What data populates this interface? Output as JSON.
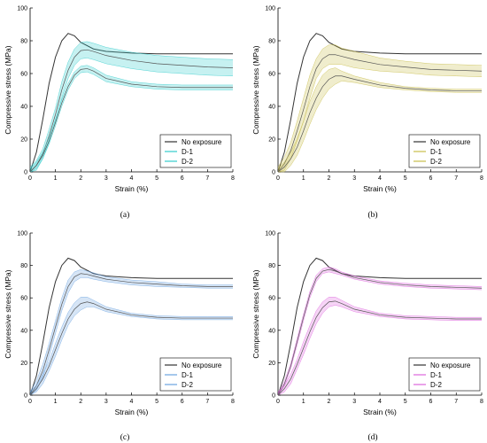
{
  "colors": {
    "no_exposure": "#333333",
    "a": "#33cccc",
    "b": "#c8bd4a",
    "c": "#6aa3e0",
    "d": "#dd66dd"
  },
  "chart_data": [
    {
      "type": "line",
      "panel_label": "(a)",
      "xlabel": "Strain (%)",
      "ylabel": "Compressive stress (MPa)",
      "xlim": [
        0,
        8
      ],
      "ylim": [
        0,
        100
      ],
      "xticks": [
        0,
        1,
        2,
        3,
        4,
        5,
        6,
        7,
        8
      ],
      "yticks": [
        0,
        20,
        40,
        60,
        80,
        100
      ],
      "legend_position": "lower-right",
      "series": [
        {
          "name": "No exposure",
          "color_key": "no_exposure",
          "x": [
            0,
            0.25,
            0.5,
            0.75,
            1.0,
            1.25,
            1.5,
            1.75,
            2.0,
            2.5,
            3.0,
            4.0,
            5.0,
            6.0,
            7.0,
            8.0
          ],
          "y": [
            0,
            12,
            32,
            54,
            70,
            80,
            84.5,
            83,
            79,
            75,
            73.5,
            72.5,
            72,
            72,
            72,
            72
          ],
          "band": null
        },
        {
          "name": "D-1",
          "color_key": "a",
          "x": [
            0,
            0.25,
            0.5,
            0.75,
            1.0,
            1.25,
            1.5,
            1.75,
            2.0,
            2.25,
            2.5,
            3.0,
            4.0,
            5.0,
            6.0,
            7.0,
            8.0
          ],
          "y": [
            0,
            4,
            11,
            22,
            35,
            50,
            62,
            70,
            74,
            74.5,
            73.5,
            71,
            68,
            66,
            65,
            64,
            63.5
          ],
          "band": [
            3,
            3,
            3,
            4,
            4,
            5,
            5,
            5,
            5,
            5,
            5,
            5,
            5,
            5,
            5,
            5,
            5
          ]
        },
        {
          "name": "D-2",
          "color_key": "a",
          "x": [
            0,
            0.25,
            0.5,
            0.75,
            1.0,
            1.25,
            1.5,
            1.75,
            2.0,
            2.25,
            2.5,
            3.0,
            4.0,
            5.0,
            6.0,
            7.0,
            8.0
          ],
          "y": [
            0,
            4,
            10,
            19,
            30,
            42,
            52,
            59,
            62.5,
            63,
            61.5,
            57,
            53.5,
            52,
            51.5,
            51.5,
            51.5
          ],
          "band": [
            2,
            2,
            2,
            2,
            2,
            2,
            2,
            2,
            2,
            2,
            2,
            2,
            1.5,
            1.5,
            1.5,
            1.5,
            1.5
          ]
        }
      ]
    },
    {
      "type": "line",
      "panel_label": "(b)",
      "xlabel": "Strain (%)",
      "ylabel": "Compressive stress (MPa)",
      "xlim": [
        0,
        8
      ],
      "ylim": [
        0,
        100
      ],
      "xticks": [
        0,
        1,
        2,
        3,
        4,
        5,
        6,
        7,
        8
      ],
      "yticks": [
        0,
        20,
        40,
        60,
        80,
        100
      ],
      "legend_position": "lower-right",
      "series": [
        {
          "name": "No exposure",
          "color_key": "no_exposure",
          "x": [
            0,
            0.25,
            0.5,
            0.75,
            1.0,
            1.25,
            1.5,
            1.75,
            2.0,
            2.5,
            3.0,
            4.0,
            5.0,
            6.0,
            7.0,
            8.0
          ],
          "y": [
            0,
            12,
            32,
            54,
            70,
            80,
            84.5,
            83,
            79,
            75,
            73.5,
            72.5,
            72,
            72,
            72,
            72
          ],
          "band": null
        },
        {
          "name": "D-1",
          "color_key": "b",
          "x": [
            0,
            0.25,
            0.5,
            0.75,
            1.0,
            1.25,
            1.5,
            1.75,
            2.0,
            2.25,
            2.5,
            3.0,
            4.0,
            5.0,
            6.0,
            7.0,
            8.0
          ],
          "y": [
            0,
            5,
            13,
            25,
            38,
            52,
            63,
            69,
            71.5,
            71.5,
            70.5,
            68.5,
            65.5,
            64,
            62.5,
            62,
            61.5
          ],
          "band": [
            3,
            4,
            5,
            6,
            7,
            7,
            6,
            6,
            6,
            6,
            5,
            5,
            4,
            3.5,
            3.5,
            3.5,
            3.5
          ]
        },
        {
          "name": "D-2",
          "color_key": "b",
          "x": [
            0,
            0.25,
            0.5,
            0.75,
            1.0,
            1.25,
            1.5,
            1.75,
            2.0,
            2.25,
            2.5,
            3.0,
            4.0,
            5.0,
            6.0,
            7.0,
            8.0
          ],
          "y": [
            0,
            3,
            8,
            15,
            25,
            36,
            45,
            52,
            56.5,
            58.5,
            58.5,
            56.5,
            53,
            51,
            50,
            49.5,
            49.5
          ],
          "band": [
            2,
            3,
            4,
            5,
            6,
            7,
            7,
            7,
            6,
            5,
            3,
            2,
            1.5,
            1,
            1,
            1,
            1
          ]
        }
      ]
    },
    {
      "type": "line",
      "panel_label": "(c)",
      "xlabel": "Strain (%)",
      "ylabel": "Compressive stress (MPa)",
      "xlim": [
        0,
        8
      ],
      "ylim": [
        0,
        100
      ],
      "xticks": [
        0,
        1,
        2,
        3,
        4,
        5,
        6,
        7,
        8
      ],
      "yticks": [
        0,
        20,
        40,
        60,
        80,
        100
      ],
      "legend_position": "lower-right",
      "series": [
        {
          "name": "No exposure",
          "color_key": "no_exposure",
          "x": [
            0,
            0.25,
            0.5,
            0.75,
            1.0,
            1.25,
            1.5,
            1.75,
            2.0,
            2.5,
            3.0,
            4.0,
            5.0,
            6.0,
            7.0,
            8.0
          ],
          "y": [
            0,
            12,
            32,
            54,
            70,
            80,
            84.5,
            83,
            79,
            75,
            73.5,
            72.5,
            72,
            72,
            72,
            72
          ],
          "band": null
        },
        {
          "name": "D-1",
          "color_key": "c",
          "x": [
            0,
            0.25,
            0.5,
            0.75,
            1.0,
            1.25,
            1.5,
            1.75,
            2.0,
            2.25,
            2.5,
            3.0,
            4.0,
            5.0,
            6.0,
            7.0,
            8.0
          ],
          "y": [
            0,
            6,
            15,
            28,
            42,
            56,
            67,
            73,
            75,
            74.5,
            73.5,
            71.5,
            69.5,
            68.5,
            67.5,
            67,
            67
          ],
          "band": [
            2,
            3,
            4,
            4,
            4,
            4,
            4,
            3,
            2.5,
            2,
            2,
            1.5,
            1.5,
            1.5,
            1,
            1,
            1
          ]
        },
        {
          "name": "D-2",
          "color_key": "c",
          "x": [
            0,
            0.25,
            0.5,
            0.75,
            1.0,
            1.25,
            1.5,
            1.75,
            2.0,
            2.25,
            2.5,
            3.0,
            4.0,
            5.0,
            6.0,
            7.0,
            8.0
          ],
          "y": [
            0,
            4,
            10,
            18,
            28,
            38,
            47,
            53,
            56.5,
            57.5,
            56.5,
            53,
            49.5,
            48,
            47.5,
            47.5,
            47.5
          ],
          "band": [
            2,
            2,
            3,
            3,
            4,
            4,
            4,
            4,
            4,
            3,
            2,
            1.5,
            1,
            1,
            1,
            1,
            1
          ]
        }
      ]
    },
    {
      "type": "line",
      "panel_label": "(d)",
      "xlabel": "Strain (%)",
      "ylabel": "Compressive stress (MPa)",
      "xlim": [
        0,
        8
      ],
      "ylim": [
        0,
        100
      ],
      "xticks": [
        0,
        1,
        2,
        3,
        4,
        5,
        6,
        7,
        8
      ],
      "yticks": [
        0,
        20,
        40,
        60,
        80,
        100
      ],
      "legend_position": "lower-right",
      "series": [
        {
          "name": "No exposure",
          "color_key": "no_exposure",
          "x": [
            0,
            0.25,
            0.5,
            0.75,
            1.0,
            1.25,
            1.5,
            1.75,
            2.0,
            2.5,
            3.0,
            4.0,
            5.0,
            6.0,
            7.0,
            8.0
          ],
          "y": [
            0,
            12,
            32,
            54,
            70,
            80,
            84.5,
            83,
            79,
            75,
            73.5,
            72.5,
            72,
            72,
            72,
            72
          ],
          "band": null
        },
        {
          "name": "D-1",
          "color_key": "d",
          "x": [
            0,
            0.25,
            0.5,
            0.75,
            1.0,
            1.25,
            1.5,
            1.75,
            2.0,
            2.25,
            2.5,
            3.0,
            4.0,
            5.0,
            6.0,
            7.0,
            8.0
          ],
          "y": [
            0,
            7,
            18,
            33,
            48,
            62,
            72,
            76.5,
            77.5,
            76.5,
            75,
            72.5,
            69.5,
            68,
            67,
            66.5,
            66
          ],
          "band": [
            1,
            1.5,
            1.5,
            2,
            2,
            2,
            2,
            1.5,
            1.5,
            1.5,
            1,
            1,
            1,
            1,
            1,
            1,
            1
          ]
        },
        {
          "name": "D-2",
          "color_key": "d",
          "x": [
            0,
            0.25,
            0.5,
            0.75,
            1.0,
            1.25,
            1.5,
            1.75,
            2.0,
            2.25,
            2.5,
            3.0,
            4.0,
            5.0,
            6.0,
            7.0,
            8.0
          ],
          "y": [
            0,
            4,
            10,
            19,
            29,
            39,
            48,
            54,
            57.5,
            58,
            56.5,
            53,
            49.5,
            48,
            47.5,
            47,
            47
          ],
          "band": [
            2,
            2,
            3,
            3,
            4,
            4,
            4,
            3.5,
            3,
            2.5,
            2,
            1.5,
            1,
            1,
            1,
            1,
            1
          ]
        }
      ]
    }
  ]
}
